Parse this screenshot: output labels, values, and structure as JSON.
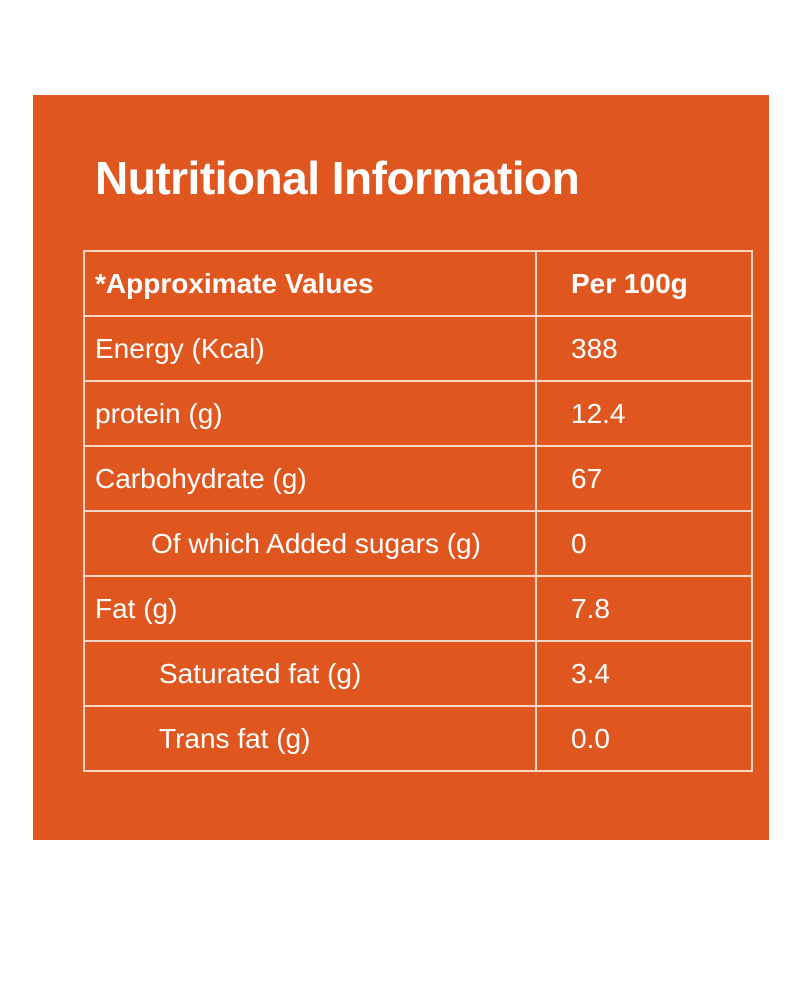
{
  "panel": {
    "title": "Nutritional Information",
    "background_color": "#e0561f"
  },
  "table": {
    "header": {
      "label": "*Approximate Values",
      "value": "Per 100g"
    },
    "rows": [
      {
        "label": "Energy (Kcal)",
        "value": "388"
      },
      {
        "label": "protein (g)",
        "value": "12.4"
      },
      {
        "label": "Carbohydrate (g)",
        "value": "67"
      },
      {
        "label": "Of which Added sugars (g)",
        "value": "0"
      },
      {
        "label": "Fat (g)",
        "value": "7.8"
      },
      {
        "label": "Saturated fat (g)",
        "value": "3.4"
      },
      {
        "label": "Trans fat (g)",
        "value": "0.0"
      }
    ]
  }
}
